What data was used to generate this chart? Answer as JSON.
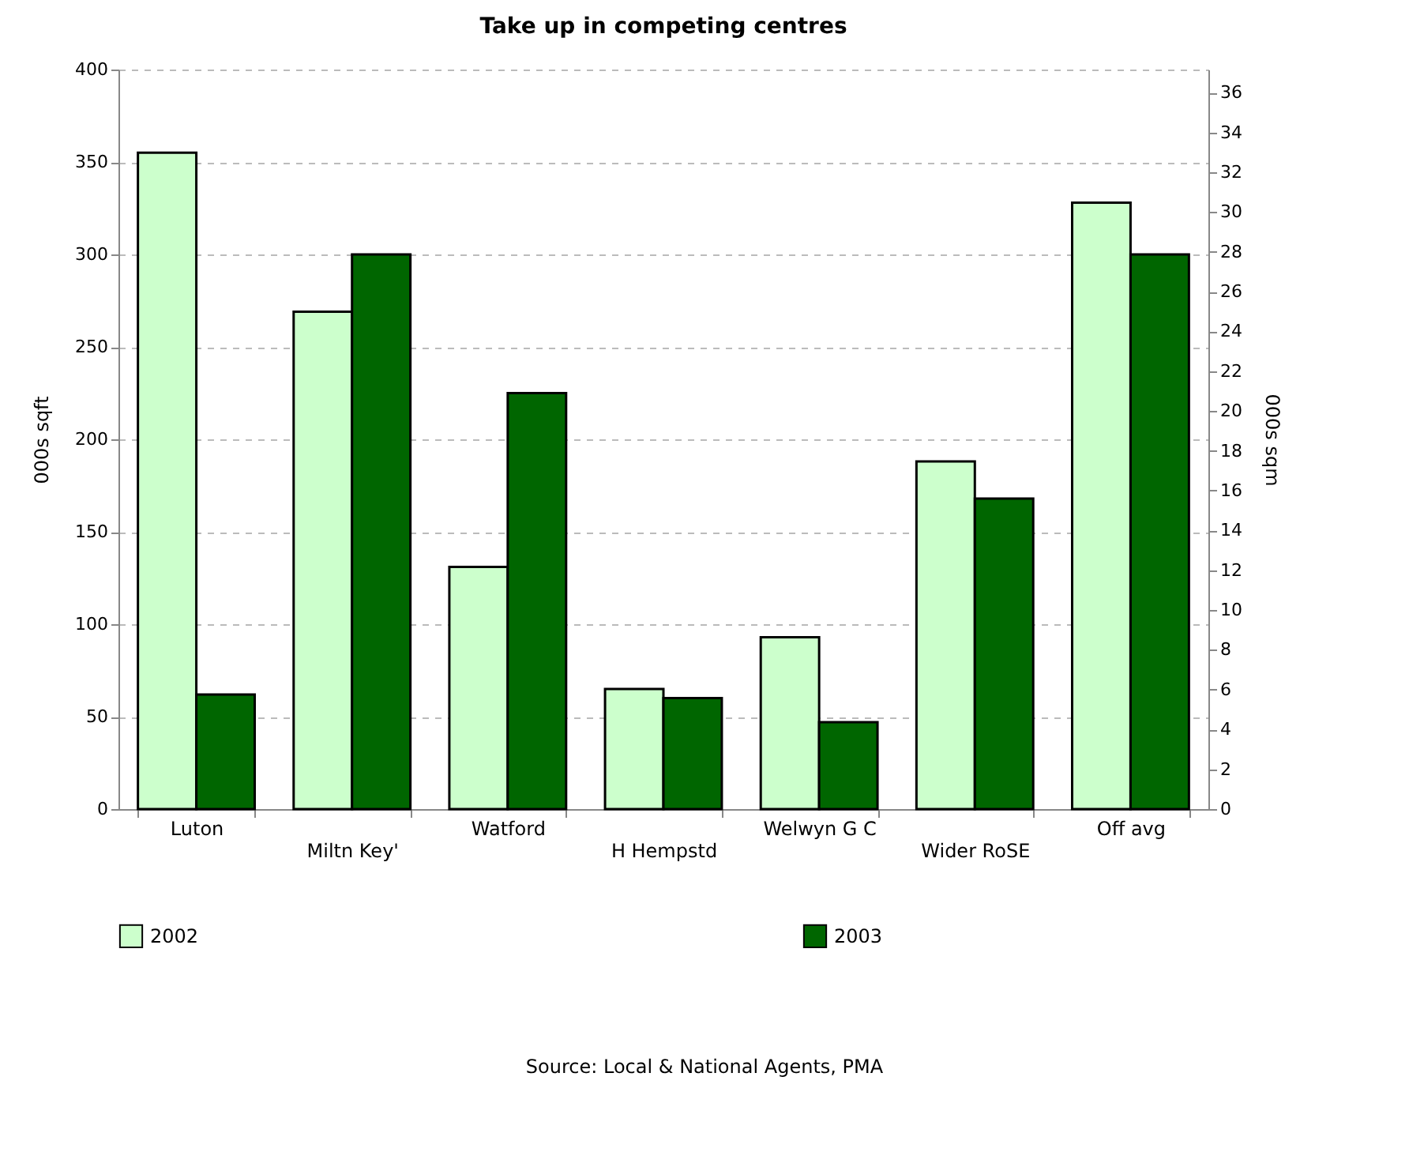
{
  "chart_data": {
    "type": "bar",
    "title": "Take up in competing centres",
    "categories": [
      "Luton",
      "Miltn Key'",
      "Watford",
      "H Hempstd",
      "Welwyn G C",
      "Wider RoSE",
      "Off avg"
    ],
    "series": [
      {
        "name": "2002",
        "color": "#ccffcc",
        "values": [
          355,
          269,
          131,
          65,
          93,
          188,
          328
        ]
      },
      {
        "name": "2003",
        "color": "#006600",
        "values": [
          62,
          300,
          225,
          60,
          47,
          168,
          300
        ]
      }
    ],
    "ylabel": "000s sqft",
    "y2label": "000s sqm",
    "ylim": [
      0,
      400
    ],
    "yticks": [
      0,
      50,
      100,
      150,
      200,
      250,
      300,
      350,
      400
    ],
    "y2lim": [
      0,
      37.16
    ],
    "y2ticks": [
      0,
      2,
      4,
      6,
      8,
      10,
      12,
      14,
      16,
      18,
      20,
      22,
      24,
      26,
      28,
      30,
      32,
      34,
      36
    ],
    "annotations": [
      "Source: Local & National Agents, PMA"
    ],
    "grid": "y",
    "legend": "bottom"
  }
}
